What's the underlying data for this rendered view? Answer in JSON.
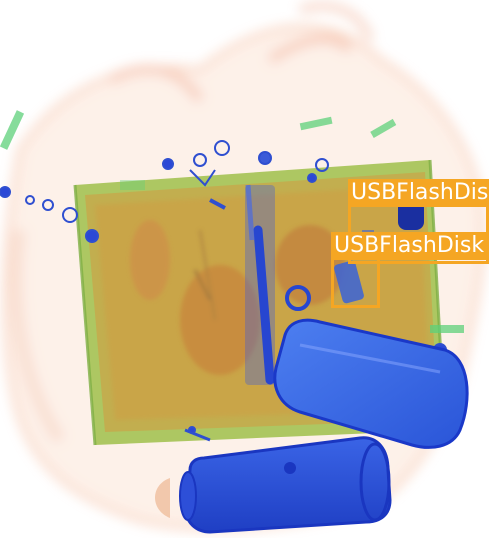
{
  "image": {
    "kind": "x-ray baggage scan",
    "detections": [
      {
        "label": "USBFlashDisk",
        "color": "#f5a623"
      },
      {
        "label": "USBFlashDisk",
        "color": "#f5a623"
      }
    ]
  }
}
